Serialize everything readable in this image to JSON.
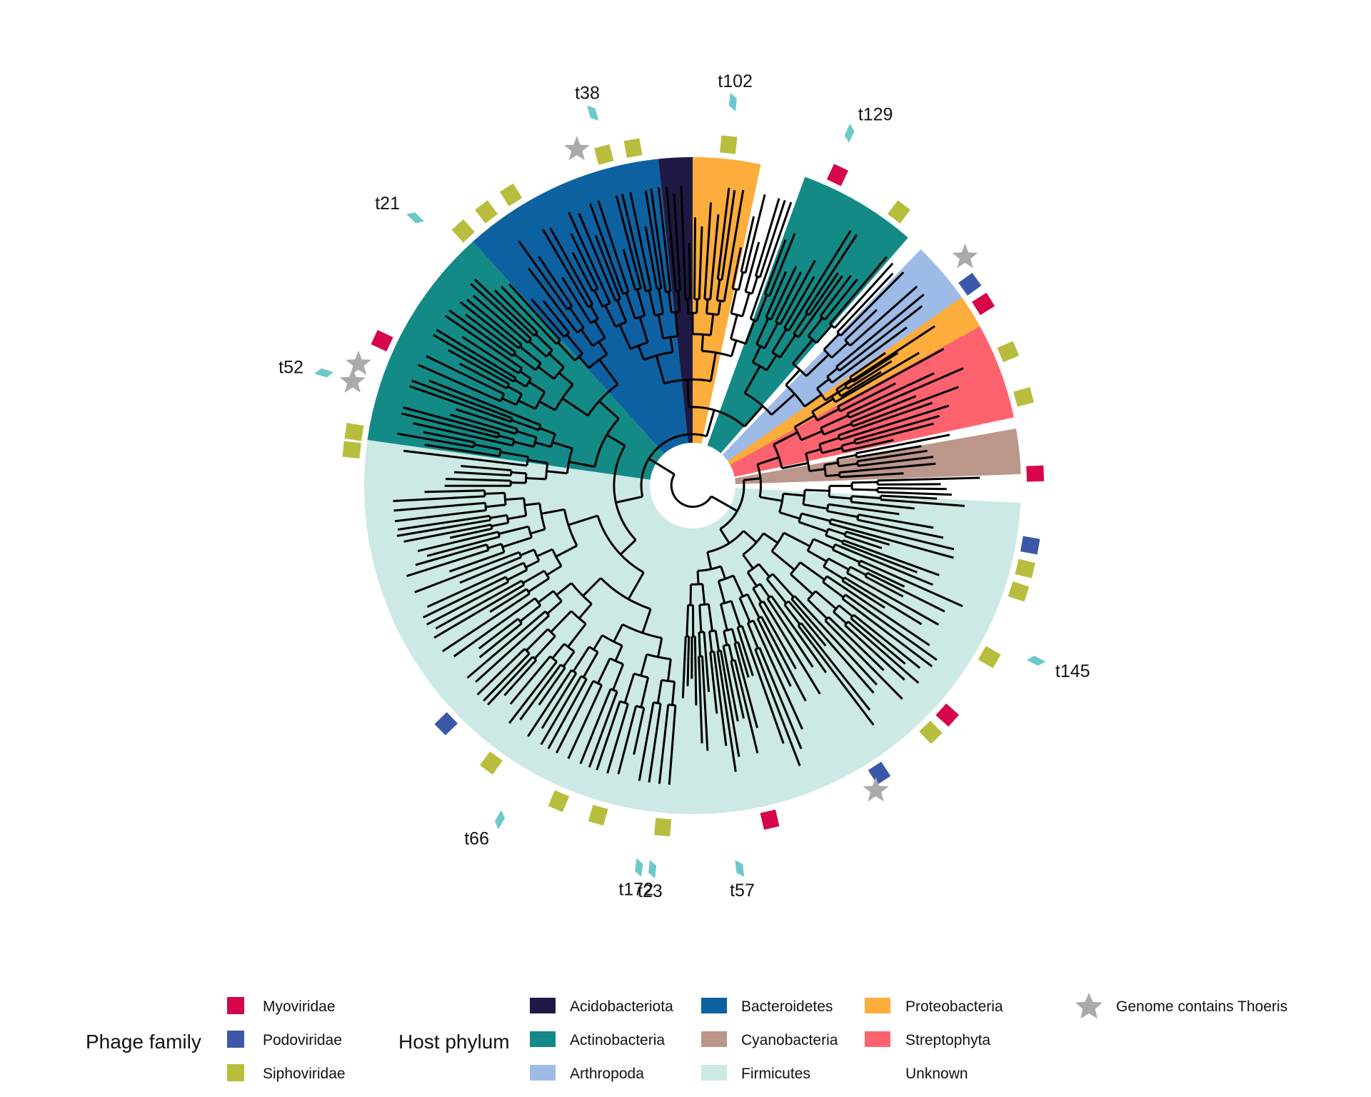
{
  "colors": {
    "Myoviridae": "#d6054a",
    "Podoviridae": "#3b58a8",
    "Siphoviridae": "#b8bd3e",
    "Acidobacteriota": "#1e1a45",
    "Actinobacteria": "#138a86",
    "Arthropoda": "#9dbbe6",
    "Bacteroidetes": "#0e61a1",
    "Cyanobacteria": "#bb968a",
    "Firmicutes": "#cce9e5",
    "Proteobacteria": "#fcad3b",
    "Streptophyta": "#fd636f",
    "Unknown": "#ffffff",
    "branch": "#000000",
    "thoeris_star": "#aaaaaa",
    "tip_marker": "#6cc9c9"
  },
  "host_sectors": [
    {
      "phylum": "Streptophyta",
      "start_deg": -35,
      "end_deg": -12
    },
    {
      "phylum": "Cyanobacteria",
      "start_deg": -10,
      "end_deg": -2
    },
    {
      "phylum": "Firmicutes",
      "start_deg": 3,
      "end_deg": 188
    },
    {
      "phylum": "Actinobacteria",
      "start_deg": 188,
      "end_deg": 228
    },
    {
      "phylum": "Bacteroidetes",
      "start_deg": 228,
      "end_deg": 264
    },
    {
      "phylum": "Acidobacteriota",
      "start_deg": 264,
      "end_deg": 270
    },
    {
      "phylum": "Proteobacteria",
      "start_deg": 270,
      "end_deg": 282
    },
    {
      "phylum": "Unknown",
      "start_deg": 282,
      "end_deg": 290
    },
    {
      "phylum": "Actinobacteria",
      "start_deg": 290,
      "end_deg": 311
    },
    {
      "phylum": "Unknown",
      "start_deg": 311,
      "end_deg": 314
    },
    {
      "phylum": "Arthropoda",
      "start_deg": 314,
      "end_deg": 325
    },
    {
      "phylum": "Proteobacteria",
      "start_deg": 325,
      "end_deg": 331
    }
  ],
  "phage_family_markers": [
    {
      "family": "Myoviridae",
      "angle_deg": -2
    },
    {
      "family": "Siphoviridae",
      "angle_deg": -15
    },
    {
      "family": "Siphoviridae",
      "angle_deg": -23
    },
    {
      "family": "Myoviridae",
      "angle_deg": -32
    },
    {
      "family": "Podoviridae",
      "angle_deg": -36
    },
    {
      "family": "Siphoviridae",
      "angle_deg": -53
    },
    {
      "family": "Myoviridae",
      "angle_deg": -65
    },
    {
      "family": "Podoviridae",
      "angle_deg": 10
    },
    {
      "family": "Siphoviridae",
      "angle_deg": 14
    },
    {
      "family": "Siphoviridae",
      "angle_deg": 18
    },
    {
      "family": "Siphoviridae",
      "angle_deg": 30
    },
    {
      "family": "Myoviridae",
      "angle_deg": 42
    },
    {
      "family": "Siphoviridae",
      "angle_deg": 46
    },
    {
      "family": "Podoviridae",
      "angle_deg": 57
    },
    {
      "family": "Myoviridae",
      "angle_deg": 77
    },
    {
      "family": "Siphoviridae",
      "angle_deg": 95
    },
    {
      "family": "Siphoviridae",
      "angle_deg": 106
    },
    {
      "family": "Siphoviridae",
      "angle_deg": 113
    },
    {
      "family": "Siphoviridae",
      "angle_deg": 126
    },
    {
      "family": "Podoviridae",
      "angle_deg": 136
    },
    {
      "family": "Siphoviridae",
      "angle_deg": 186
    },
    {
      "family": "Siphoviridae",
      "angle_deg": 189
    },
    {
      "family": "Myoviridae",
      "angle_deg": 205
    },
    {
      "family": "Siphoviridae",
      "angle_deg": 228
    },
    {
      "family": "Siphoviridae",
      "angle_deg": 233
    },
    {
      "family": "Siphoviridae",
      "angle_deg": 238
    },
    {
      "family": "Siphoviridae",
      "angle_deg": 255
    },
    {
      "family": "Siphoviridae",
      "angle_deg": 260
    },
    {
      "family": "Siphoviridae",
      "angle_deg": 276
    }
  ],
  "thoeris_markers": [
    {
      "angle_deg": -40
    },
    {
      "angle_deg": 59
    },
    {
      "angle_deg": 197
    },
    {
      "angle_deg": 200
    },
    {
      "angle_deg": 251
    }
  ],
  "tip_labels": [
    {
      "text": "t102",
      "angle_deg": 276
    },
    {
      "text": "t129",
      "angle_deg": 294
    },
    {
      "text": "t38",
      "angle_deg": 255
    },
    {
      "text": "t21",
      "angle_deg": 224
    },
    {
      "text": "t52",
      "angle_deg": 197
    },
    {
      "text": "t145",
      "angle_deg": 27
    },
    {
      "text": "t57",
      "angle_deg": 83
    },
    {
      "text": "t23",
      "angle_deg": 96
    },
    {
      "text": "t172",
      "angle_deg": 98
    },
    {
      "text": "t66",
      "angle_deg": 120
    }
  ],
  "legend": {
    "phage_title": "Phage family",
    "phage_items": [
      "Myoviridae",
      "Podoviridae",
      "Siphoviridae"
    ],
    "host_title": "Host phylum",
    "host_items": [
      "Acidobacteriota",
      "Actinobacteria",
      "Arthropoda",
      "Bacteroidetes",
      "Cyanobacteria",
      "Firmicutes",
      "Proteobacteria",
      "Streptophyta",
      "Unknown"
    ],
    "thoeris_label": "Genome contains Thoeris"
  }
}
